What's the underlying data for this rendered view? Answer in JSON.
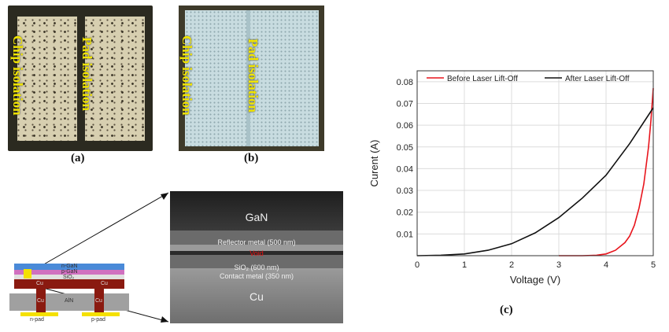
{
  "panel_a": {
    "caption": "(a)",
    "label_left": "Chip isolation",
    "label_right": "Pad isolation"
  },
  "panel_b": {
    "caption": "(b)",
    "label_left": "Chip isolation",
    "label_right": "Pad isolation"
  },
  "sem": {
    "gan": "GaN",
    "reflector": "Reflector metal (500 nm)",
    "void": "Void",
    "sio2": "SiO₂ (600 nm)",
    "contact": "Contact metal (350 nm)",
    "cu": "Cu"
  },
  "schematic": {
    "layers": [
      "n-GaN",
      "p-GaN",
      "SiO₂",
      "Cu",
      "Cu",
      "AlN",
      "Cu",
      "Cu"
    ],
    "n_pad": "n-pad",
    "p_pad": "p-pad"
  },
  "panel_c": {
    "caption": "(c)"
  },
  "chart_data": {
    "type": "line",
    "xlabel": "Voltage (V)",
    "ylabel": "Curent (A)",
    "xlim": [
      0,
      5
    ],
    "ylim": [
      0,
      0.085
    ],
    "xticks": [
      0,
      1,
      2,
      3,
      4,
      5
    ],
    "yticks": [
      0.01,
      0.02,
      0.03,
      0.04,
      0.05,
      0.06,
      0.07,
      0.08
    ],
    "grid": true,
    "legend_position": "top",
    "series": [
      {
        "name": "Before Laser Lift-Off",
        "color": "#e8141c",
        "x": [
          3.0,
          3.5,
          3.8,
          4.0,
          4.2,
          4.4,
          4.5,
          4.6,
          4.7,
          4.8,
          4.9,
          4.95,
          5.0
        ],
        "y": [
          0.0,
          0.0,
          0.0002,
          0.0008,
          0.0025,
          0.006,
          0.009,
          0.014,
          0.022,
          0.033,
          0.05,
          0.062,
          0.077
        ]
      },
      {
        "name": "After Laser Lift-Off",
        "color": "#111111",
        "x": [
          0.0,
          0.5,
          1.0,
          1.5,
          2.0,
          2.5,
          3.0,
          3.5,
          4.0,
          4.5,
          5.0
        ],
        "y": [
          0.0,
          0.0002,
          0.0008,
          0.0025,
          0.0055,
          0.0105,
          0.0175,
          0.0265,
          0.037,
          0.0515,
          0.068
        ]
      }
    ]
  }
}
